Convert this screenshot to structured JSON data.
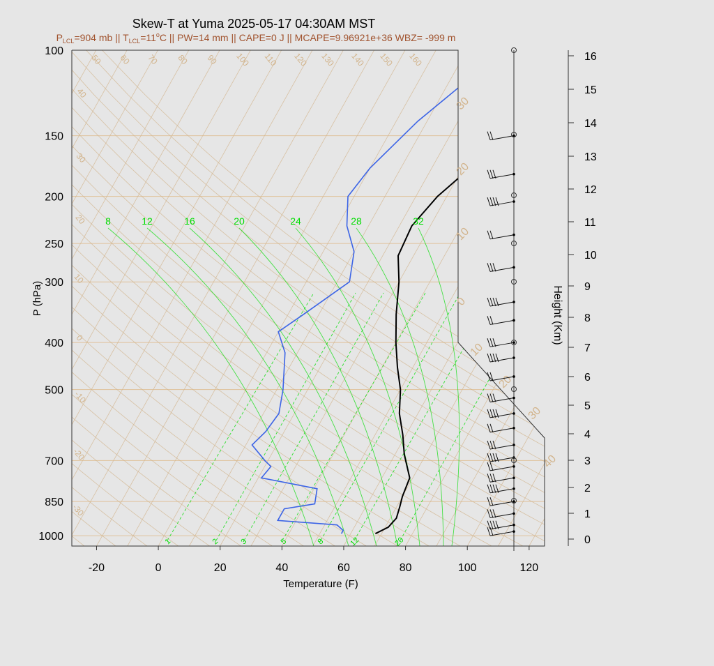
{
  "title": "Skew-T at Yuma 2025-05-17 04:30AM MST",
  "subtitle": {
    "lcl_p_prefix": "P",
    "lcl_p_sub": "LCL",
    "lcl_p_value": "=904 mb || ",
    "lcl_t_prefix": "T",
    "lcl_t_sub": "LCL",
    "lcl_t_value": "=11",
    "deg_o": "o",
    "rest": "C || PW=14 mm || CAPE=0 J || MCAPE=9.96921e+36 WBZ= -999 m"
  },
  "colors": {
    "background": "#e6e6e6",
    "grid_tan": "#d2b48c",
    "isobar": "#deb887",
    "mixing_ratio": "#00dd00",
    "temperature": "#000000",
    "dewpoint": "#3c64e6",
    "subtitle": "#a0522d"
  },
  "chart_data": {
    "type": "line",
    "xlabel": "Temperature (F)",
    "ylabel": "P (hPa)",
    "y2label": "Height (Km)",
    "xlim": [
      -28,
      125
    ],
    "ylim": [
      1050,
      100
    ],
    "y_scale": "log",
    "x_ticks": [
      -20,
      0,
      20,
      40,
      60,
      80,
      100,
      120
    ],
    "pressure_ticks": [
      100,
      150,
      200,
      250,
      300,
      400,
      500,
      700,
      850,
      1000
    ],
    "height_ticks_km": [
      0,
      1,
      2,
      3,
      4,
      5,
      6,
      7,
      8,
      9,
      10,
      11,
      12,
      13,
      14,
      15,
      16
    ],
    "skewed_isotherm_labels_c": [
      -50,
      -40,
      -30,
      -20,
      -10,
      0,
      10,
      20,
      30,
      40
    ],
    "dry_adiabat_labels": [
      50,
      60,
      70,
      80,
      90,
      100,
      110,
      120,
      130,
      140,
      150,
      160,
      40,
      30,
      20,
      10,
      0,
      -10,
      -20,
      -30
    ],
    "mixing_ratio_top_labels": [
      8,
      12,
      16,
      20,
      24,
      28,
      32
    ],
    "mixing_ratio_bottom_labels": [
      1,
      2,
      3,
      5,
      8,
      12,
      20
    ],
    "series": [
      {
        "name": "Temperature",
        "color": "#000000",
        "points": [
          [
            100,
            60
          ],
          [
            130,
            47
          ],
          [
            160,
            36
          ],
          [
            200,
            27
          ],
          [
            230,
            24
          ],
          [
            265,
            25
          ],
          [
            300,
            30
          ],
          [
            350,
            35
          ],
          [
            400,
            40
          ],
          [
            450,
            45
          ],
          [
            500,
            50
          ],
          [
            560,
            54
          ],
          [
            620,
            59
          ],
          [
            680,
            63
          ],
          [
            760,
            69
          ],
          [
            830,
            70
          ],
          [
            870,
            71
          ],
          [
            920,
            72
          ],
          [
            960,
            71
          ],
          [
            990,
            68
          ]
        ]
      },
      {
        "name": "Dewpoint",
        "color": "#3c64e6",
        "points": [
          [
            100,
            22
          ],
          [
            140,
            7
          ],
          [
            175,
            0
          ],
          [
            200,
            -2
          ],
          [
            230,
            3
          ],
          [
            260,
            10
          ],
          [
            300,
            14
          ],
          [
            350,
            5
          ],
          [
            380,
            0
          ],
          [
            420,
            6
          ],
          [
            500,
            12
          ],
          [
            560,
            15
          ],
          [
            610,
            14
          ],
          [
            650,
            12
          ],
          [
            700,
            19
          ],
          [
            720,
            22
          ],
          [
            760,
            21
          ],
          [
            800,
            41
          ],
          [
            860,
            43
          ],
          [
            880,
            34
          ],
          [
            930,
            34
          ],
          [
            950,
            54
          ],
          [
            975,
            57
          ],
          [
            990,
            57
          ]
        ]
      }
    ]
  }
}
